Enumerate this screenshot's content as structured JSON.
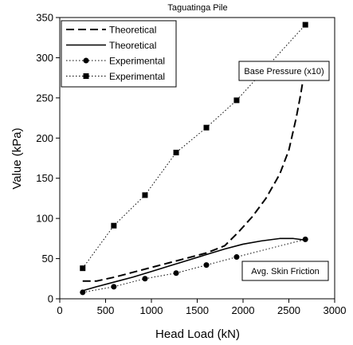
{
  "chart_data": {
    "type": "line",
    "title": "Taguatinga Pile",
    "xlabel": "Head Load (kN)",
    "ylabel": "Value (kPa)",
    "xlim": [
      0,
      3000
    ],
    "ylim": [
      0,
      350
    ],
    "xticks": [
      0,
      500,
      1000,
      1500,
      2000,
      2500,
      3000
    ],
    "yticks": [
      0,
      50,
      100,
      150,
      200,
      250,
      300,
      350
    ],
    "grid": false,
    "legend_position": "top-left",
    "series": [
      {
        "name": "Theoretical",
        "style": "dashed",
        "color": "#000000",
        "x": [
          250,
          400,
          600,
          800,
          1000,
          1200,
          1400,
          1600,
          1800,
          1950,
          2100,
          2250,
          2400,
          2500,
          2580,
          2630,
          2680
        ],
        "y": [
          22,
          22,
          27,
          33,
          39,
          45,
          51,
          57,
          66,
          83,
          102,
          125,
          155,
          185,
          225,
          255,
          290
        ]
      },
      {
        "name": "Theoretical",
        "style": "solid",
        "color": "#000000",
        "x": [
          250,
          400,
          600,
          800,
          1000,
          1200,
          1400,
          1600,
          1800,
          2000,
          2200,
          2400,
          2550,
          2680
        ],
        "y": [
          10,
          15,
          21,
          27,
          34,
          41,
          48,
          55,
          62,
          68,
          72,
          75,
          75,
          73
        ]
      },
      {
        "name": "Experimental",
        "style": "dotted-circle",
        "color": "#000000",
        "x": [
          250,
          590,
          930,
          1270,
          1600,
          1930,
          2680
        ],
        "y": [
          8,
          15,
          25,
          32,
          42,
          52,
          74
        ]
      },
      {
        "name": "Experimental",
        "style": "dotted-square",
        "color": "#000000",
        "x": [
          250,
          590,
          930,
          1270,
          1600,
          1930,
          2680
        ],
        "y": [
          38,
          91,
          129,
          182,
          213,
          247,
          341
        ]
      }
    ],
    "annotations": [
      {
        "text": "Base Pressure (x10)"
      },
      {
        "text": "Avg. Skin Friction"
      }
    ]
  }
}
